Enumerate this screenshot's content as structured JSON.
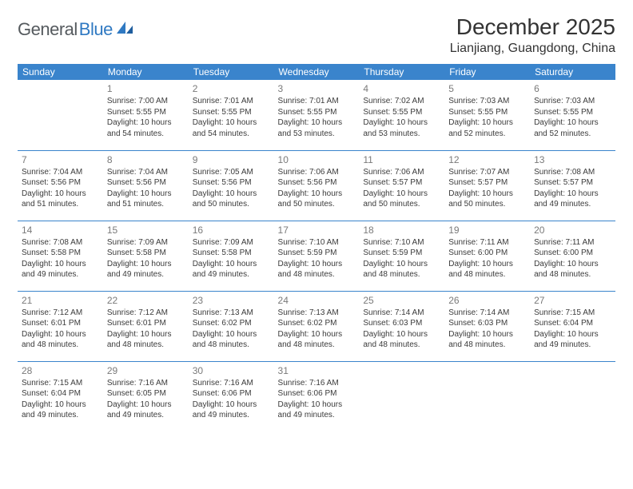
{
  "brand": {
    "name_part1": "General",
    "name_part2": "Blue",
    "text_color": "#555a5e",
    "accent_color": "#2f79c2"
  },
  "title": {
    "month": "December 2025",
    "location": "Lianjiang, Guangdong, China"
  },
  "calendar": {
    "header_bg": "#3a84cc",
    "header_fg": "#ffffff",
    "border_color": "#3a84cc",
    "daynum_color": "#7a7a7a",
    "text_color": "#3b3b3b",
    "background": "#ffffff",
    "columns": [
      "Sunday",
      "Monday",
      "Tuesday",
      "Wednesday",
      "Thursday",
      "Friday",
      "Saturday"
    ],
    "rows": [
      [
        null,
        {
          "n": "1",
          "sr": "Sunrise: 7:00 AM",
          "ss": "Sunset: 5:55 PM",
          "d1": "Daylight: 10 hours",
          "d2": "and 54 minutes."
        },
        {
          "n": "2",
          "sr": "Sunrise: 7:01 AM",
          "ss": "Sunset: 5:55 PM",
          "d1": "Daylight: 10 hours",
          "d2": "and 54 minutes."
        },
        {
          "n": "3",
          "sr": "Sunrise: 7:01 AM",
          "ss": "Sunset: 5:55 PM",
          "d1": "Daylight: 10 hours",
          "d2": "and 53 minutes."
        },
        {
          "n": "4",
          "sr": "Sunrise: 7:02 AM",
          "ss": "Sunset: 5:55 PM",
          "d1": "Daylight: 10 hours",
          "d2": "and 53 minutes."
        },
        {
          "n": "5",
          "sr": "Sunrise: 7:03 AM",
          "ss": "Sunset: 5:55 PM",
          "d1": "Daylight: 10 hours",
          "d2": "and 52 minutes."
        },
        {
          "n": "6",
          "sr": "Sunrise: 7:03 AM",
          "ss": "Sunset: 5:55 PM",
          "d1": "Daylight: 10 hours",
          "d2": "and 52 minutes."
        }
      ],
      [
        {
          "n": "7",
          "sr": "Sunrise: 7:04 AM",
          "ss": "Sunset: 5:56 PM",
          "d1": "Daylight: 10 hours",
          "d2": "and 51 minutes."
        },
        {
          "n": "8",
          "sr": "Sunrise: 7:04 AM",
          "ss": "Sunset: 5:56 PM",
          "d1": "Daylight: 10 hours",
          "d2": "and 51 minutes."
        },
        {
          "n": "9",
          "sr": "Sunrise: 7:05 AM",
          "ss": "Sunset: 5:56 PM",
          "d1": "Daylight: 10 hours",
          "d2": "and 50 minutes."
        },
        {
          "n": "10",
          "sr": "Sunrise: 7:06 AM",
          "ss": "Sunset: 5:56 PM",
          "d1": "Daylight: 10 hours",
          "d2": "and 50 minutes."
        },
        {
          "n": "11",
          "sr": "Sunrise: 7:06 AM",
          "ss": "Sunset: 5:57 PM",
          "d1": "Daylight: 10 hours",
          "d2": "and 50 minutes."
        },
        {
          "n": "12",
          "sr": "Sunrise: 7:07 AM",
          "ss": "Sunset: 5:57 PM",
          "d1": "Daylight: 10 hours",
          "d2": "and 50 minutes."
        },
        {
          "n": "13",
          "sr": "Sunrise: 7:08 AM",
          "ss": "Sunset: 5:57 PM",
          "d1": "Daylight: 10 hours",
          "d2": "and 49 minutes."
        }
      ],
      [
        {
          "n": "14",
          "sr": "Sunrise: 7:08 AM",
          "ss": "Sunset: 5:58 PM",
          "d1": "Daylight: 10 hours",
          "d2": "and 49 minutes."
        },
        {
          "n": "15",
          "sr": "Sunrise: 7:09 AM",
          "ss": "Sunset: 5:58 PM",
          "d1": "Daylight: 10 hours",
          "d2": "and 49 minutes."
        },
        {
          "n": "16",
          "sr": "Sunrise: 7:09 AM",
          "ss": "Sunset: 5:58 PM",
          "d1": "Daylight: 10 hours",
          "d2": "and 49 minutes."
        },
        {
          "n": "17",
          "sr": "Sunrise: 7:10 AM",
          "ss": "Sunset: 5:59 PM",
          "d1": "Daylight: 10 hours",
          "d2": "and 48 minutes."
        },
        {
          "n": "18",
          "sr": "Sunrise: 7:10 AM",
          "ss": "Sunset: 5:59 PM",
          "d1": "Daylight: 10 hours",
          "d2": "and 48 minutes."
        },
        {
          "n": "19",
          "sr": "Sunrise: 7:11 AM",
          "ss": "Sunset: 6:00 PM",
          "d1": "Daylight: 10 hours",
          "d2": "and 48 minutes."
        },
        {
          "n": "20",
          "sr": "Sunrise: 7:11 AM",
          "ss": "Sunset: 6:00 PM",
          "d1": "Daylight: 10 hours",
          "d2": "and 48 minutes."
        }
      ],
      [
        {
          "n": "21",
          "sr": "Sunrise: 7:12 AM",
          "ss": "Sunset: 6:01 PM",
          "d1": "Daylight: 10 hours",
          "d2": "and 48 minutes."
        },
        {
          "n": "22",
          "sr": "Sunrise: 7:12 AM",
          "ss": "Sunset: 6:01 PM",
          "d1": "Daylight: 10 hours",
          "d2": "and 48 minutes."
        },
        {
          "n": "23",
          "sr": "Sunrise: 7:13 AM",
          "ss": "Sunset: 6:02 PM",
          "d1": "Daylight: 10 hours",
          "d2": "and 48 minutes."
        },
        {
          "n": "24",
          "sr": "Sunrise: 7:13 AM",
          "ss": "Sunset: 6:02 PM",
          "d1": "Daylight: 10 hours",
          "d2": "and 48 minutes."
        },
        {
          "n": "25",
          "sr": "Sunrise: 7:14 AM",
          "ss": "Sunset: 6:03 PM",
          "d1": "Daylight: 10 hours",
          "d2": "and 48 minutes."
        },
        {
          "n": "26",
          "sr": "Sunrise: 7:14 AM",
          "ss": "Sunset: 6:03 PM",
          "d1": "Daylight: 10 hours",
          "d2": "and 48 minutes."
        },
        {
          "n": "27",
          "sr": "Sunrise: 7:15 AM",
          "ss": "Sunset: 6:04 PM",
          "d1": "Daylight: 10 hours",
          "d2": "and 49 minutes."
        }
      ],
      [
        {
          "n": "28",
          "sr": "Sunrise: 7:15 AM",
          "ss": "Sunset: 6:04 PM",
          "d1": "Daylight: 10 hours",
          "d2": "and 49 minutes."
        },
        {
          "n": "29",
          "sr": "Sunrise: 7:16 AM",
          "ss": "Sunset: 6:05 PM",
          "d1": "Daylight: 10 hours",
          "d2": "and 49 minutes."
        },
        {
          "n": "30",
          "sr": "Sunrise: 7:16 AM",
          "ss": "Sunset: 6:06 PM",
          "d1": "Daylight: 10 hours",
          "d2": "and 49 minutes."
        },
        {
          "n": "31",
          "sr": "Sunrise: 7:16 AM",
          "ss": "Sunset: 6:06 PM",
          "d1": "Daylight: 10 hours",
          "d2": "and 49 minutes."
        },
        null,
        null,
        null
      ]
    ]
  }
}
